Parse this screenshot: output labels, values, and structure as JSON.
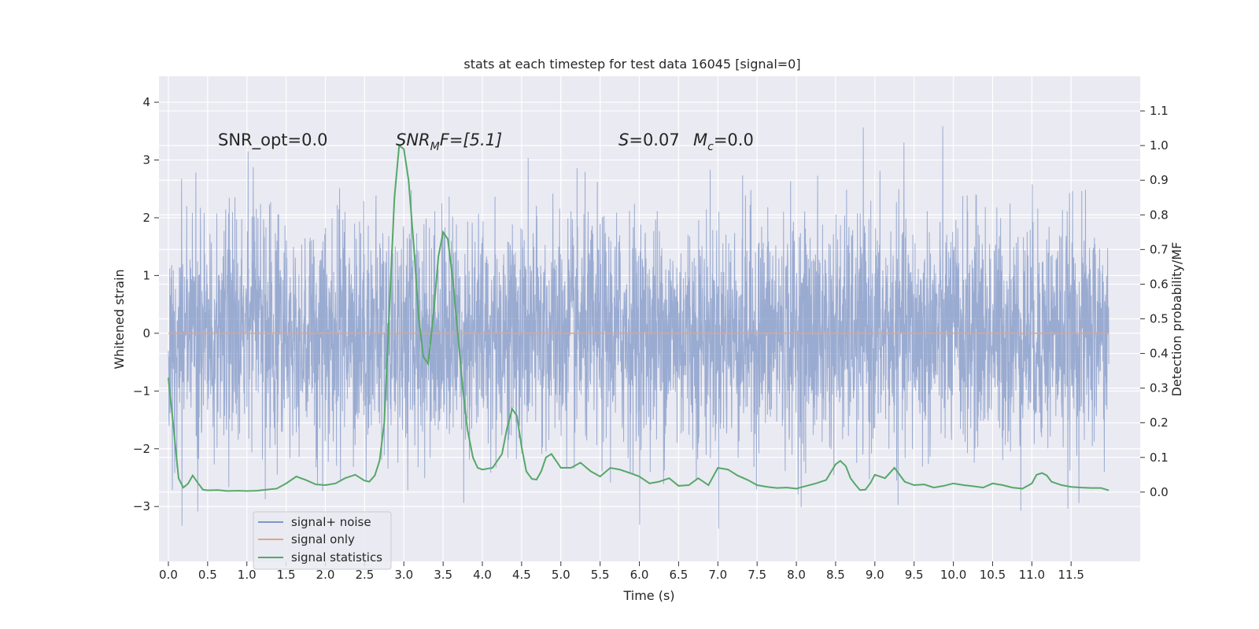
{
  "chart_data": {
    "type": "line",
    "title": "stats at each timestep for test data 16045 [signal=0]",
    "xlabel": "Time (s)",
    "ylabel": "Whitened strain",
    "y2label": "Detection probability/MF",
    "xlim": [
      -0.12,
      12.38
    ],
    "ylim": [
      -3.95,
      4.45
    ],
    "y2lim": [
      -0.2,
      1.2
    ],
    "x_ticks": [
      0.0,
      0.5,
      1.0,
      1.5,
      2.0,
      2.5,
      3.0,
      3.5,
      4.0,
      4.5,
      5.0,
      5.5,
      6.0,
      6.5,
      7.0,
      7.5,
      8.0,
      8.5,
      9.0,
      9.5,
      10.0,
      10.5,
      11.0,
      11.5
    ],
    "x_tick_labels": [
      "0.0",
      "0.5",
      "1.0",
      "1.5",
      "2.0",
      "2.5",
      "3.0",
      "3.5",
      "4.0",
      "4.5",
      "5.0",
      "5.5",
      "6.0",
      "6.5",
      "7.0",
      "7.5",
      "8.0",
      "8.5",
      "9.0",
      "9.5",
      "10.0",
      "10.5",
      "11.0",
      "11.5"
    ],
    "y_ticks": [
      -3,
      -2,
      -1,
      0,
      1,
      2,
      3,
      4
    ],
    "y_tick_labels": [
      "−3",
      "−2",
      "−1",
      "0",
      "1",
      "2",
      "3",
      "4"
    ],
    "y2_ticks": [
      0.0,
      0.1,
      0.2,
      0.3,
      0.4,
      0.5,
      0.6,
      0.7,
      0.8,
      0.9,
      1.0,
      1.1
    ],
    "y2_tick_labels": [
      "0.0",
      "0.1",
      "0.2",
      "0.3",
      "0.4",
      "0.5",
      "0.6",
      "0.7",
      "0.8",
      "0.9",
      "1.0",
      "1.1"
    ],
    "grid": true,
    "legend_position": "lower-left",
    "annotations": {
      "snr_opt": "SNR_opt=0.0",
      "snr_mf_main": "SNR",
      "snr_mf_sub": "M",
      "snr_mf_rest": "F=[5.1]",
      "s_main": "S",
      "s_rest": "=0.07",
      "mc_main": "M",
      "mc_sub": "c",
      "mc_rest": "=0.0"
    },
    "series": [
      {
        "name": "signal+ noise",
        "color": "#7f96c6",
        "axis": "left",
        "x_range": [
          0.0,
          11.98
        ],
        "typical_amplitude": 1.0,
        "peak_range": [
          -3.5,
          4.1
        ]
      },
      {
        "name": "signal only",
        "color": "#e0a48a",
        "axis": "left",
        "x": [
          0.0,
          11.98
        ],
        "y": [
          0.0,
          0.0
        ]
      },
      {
        "name": "signal statistics",
        "color": "#55a868",
        "axis": "right",
        "x": [
          0.0,
          0.06,
          0.13,
          0.19,
          0.25,
          0.31,
          0.38,
          0.44,
          0.5,
          0.63,
          0.75,
          0.88,
          1.0,
          1.13,
          1.25,
          1.38,
          1.5,
          1.63,
          1.75,
          1.88,
          2.0,
          2.13,
          2.25,
          2.38,
          2.5,
          2.56,
          2.63,
          2.69,
          2.75,
          2.81,
          2.88,
          2.94,
          3.0,
          3.06,
          3.13,
          3.19,
          3.25,
          3.31,
          3.38,
          3.44,
          3.5,
          3.56,
          3.63,
          3.69,
          3.75,
          3.81,
          3.88,
          3.94,
          4.0,
          4.13,
          4.25,
          4.31,
          4.38,
          4.44,
          4.5,
          4.56,
          4.63,
          4.69,
          4.75,
          4.81,
          4.88,
          4.94,
          5.0,
          5.13,
          5.25,
          5.38,
          5.5,
          5.63,
          5.75,
          5.88,
          6.0,
          6.13,
          6.25,
          6.38,
          6.5,
          6.63,
          6.75,
          6.88,
          7.0,
          7.13,
          7.25,
          7.38,
          7.5,
          7.63,
          7.75,
          7.88,
          8.0,
          8.13,
          8.25,
          8.38,
          8.5,
          8.56,
          8.63,
          8.69,
          8.75,
          8.81,
          8.88,
          8.94,
          9.0,
          9.13,
          9.25,
          9.38,
          9.5,
          9.63,
          9.75,
          9.88,
          10.0,
          10.13,
          10.25,
          10.38,
          10.5,
          10.63,
          10.75,
          10.88,
          11.0,
          11.06,
          11.13,
          11.19,
          11.25,
          11.38,
          11.5,
          11.63,
          11.75,
          11.88,
          11.98
        ],
        "y": [
          0.33,
          0.2,
          0.04,
          0.013,
          0.024,
          0.048,
          0.025,
          0.007,
          0.005,
          0.006,
          0.003,
          0.004,
          0.003,
          0.004,
          0.007,
          0.01,
          0.025,
          0.045,
          0.035,
          0.022,
          0.02,
          0.025,
          0.04,
          0.05,
          0.033,
          0.03,
          0.048,
          0.09,
          0.2,
          0.5,
          0.85,
          1.0,
          0.99,
          0.9,
          0.7,
          0.5,
          0.39,
          0.37,
          0.52,
          0.68,
          0.75,
          0.73,
          0.6,
          0.45,
          0.3,
          0.18,
          0.1,
          0.07,
          0.065,
          0.07,
          0.11,
          0.18,
          0.24,
          0.22,
          0.13,
          0.06,
          0.038,
          0.036,
          0.06,
          0.1,
          0.11,
          0.09,
          0.07,
          0.07,
          0.085,
          0.06,
          0.045,
          0.07,
          0.065,
          0.055,
          0.045,
          0.025,
          0.03,
          0.04,
          0.018,
          0.02,
          0.04,
          0.02,
          0.07,
          0.065,
          0.048,
          0.035,
          0.02,
          0.015,
          0.012,
          0.013,
          0.01,
          0.018,
          0.025,
          0.035,
          0.08,
          0.09,
          0.075,
          0.04,
          0.022,
          0.006,
          0.007,
          0.025,
          0.05,
          0.04,
          0.07,
          0.03,
          0.02,
          0.022,
          0.013,
          0.018,
          0.025,
          0.02,
          0.017,
          0.013,
          0.025,
          0.02,
          0.013,
          0.01,
          0.025,
          0.05,
          0.055,
          0.048,
          0.03,
          0.02,
          0.015,
          0.013,
          0.012,
          0.012,
          0.005
        ]
      }
    ]
  }
}
